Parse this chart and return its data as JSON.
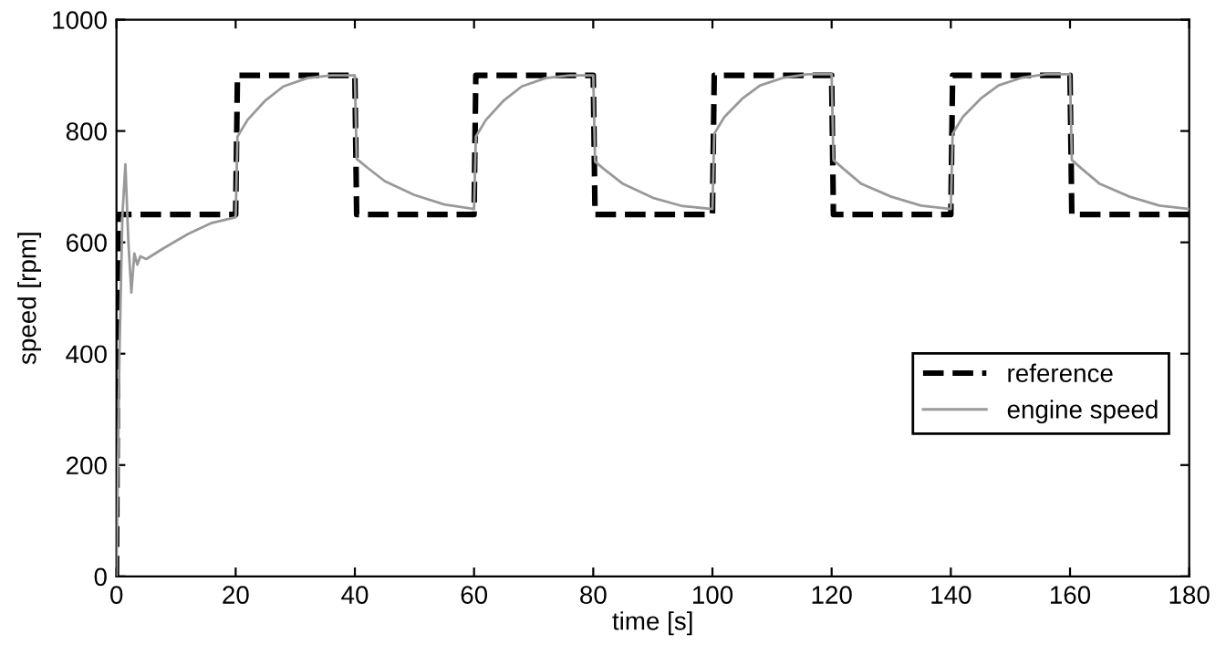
{
  "chart_data": {
    "type": "line",
    "xlabel": "time [s]",
    "ylabel": "speed [rpm]",
    "xlim": [
      0,
      180
    ],
    "ylim": [
      0,
      1000
    ],
    "xticks": [
      0,
      20,
      40,
      60,
      80,
      100,
      120,
      140,
      160,
      180
    ],
    "yticks": [
      0,
      200,
      400,
      600,
      800,
      1000
    ],
    "grid": false,
    "legend": "lower right",
    "marker": "none",
    "series": [
      {
        "name": "reference",
        "color": "#000000",
        "line_style": "dashed",
        "x": [
          0,
          0.3,
          20,
          20.3,
          40,
          40.3,
          60,
          60.3,
          80,
          80.3,
          100,
          100.3,
          120,
          120.3,
          140,
          140.3,
          160,
          160.3,
          180
        ],
        "values": [
          0,
          650,
          650,
          900,
          900,
          650,
          650,
          900,
          900,
          650,
          650,
          900,
          900,
          650,
          650,
          900,
          900,
          650,
          650
        ]
      },
      {
        "name": "engine speed",
        "color": "#999999",
        "line_style": "solid",
        "x": [
          0,
          0.5,
          1,
          1.5,
          2,
          2.5,
          3,
          3.5,
          4,
          5,
          8,
          12,
          16,
          20,
          20.3,
          22,
          25,
          28,
          32,
          36,
          40,
          40.3,
          42,
          45,
          50,
          55,
          60,
          60.3,
          62,
          65,
          68,
          72,
          76,
          80,
          80.3,
          82,
          85,
          90,
          95,
          100,
          100.3,
          102,
          105,
          108,
          112,
          116,
          120,
          120.3,
          122,
          125,
          130,
          135,
          140,
          140.3,
          142,
          145,
          148,
          152,
          156,
          160,
          160.3,
          162,
          165,
          170,
          175,
          180
        ],
        "values": [
          0,
          400,
          650,
          740,
          600,
          510,
          580,
          560,
          575,
          570,
          590,
          615,
          635,
          645,
          790,
          820,
          855,
          880,
          895,
          900,
          900,
          750,
          735,
          710,
          685,
          668,
          660,
          790,
          820,
          855,
          880,
          895,
          900,
          900,
          745,
          730,
          705,
          680,
          665,
          660,
          795,
          825,
          858,
          882,
          896,
          902,
          902,
          748,
          732,
          705,
          682,
          666,
          660,
          795,
          825,
          858,
          882,
          896,
          902,
          902,
          748,
          732,
          705,
          682,
          666,
          660
        ]
      }
    ]
  }
}
